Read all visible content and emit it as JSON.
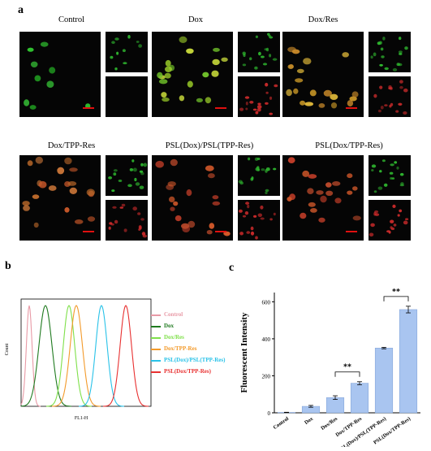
{
  "panel_a": {
    "letter": "a",
    "conditions": [
      {
        "title": "Control",
        "main_tint": "green"
      },
      {
        "title": "Dox",
        "main_tint": "green-yellow"
      },
      {
        "title": "Dox/Res",
        "main_tint": "orange"
      },
      {
        "title": "Dox/TPP-Res",
        "main_tint": "orange-red"
      },
      {
        "title": "PSL(Dox)/PSL(TPP-Res)",
        "main_tint": "red-orange"
      },
      {
        "title": "PSL(Dox/TPP-Res)",
        "main_tint": "red-orange"
      }
    ],
    "scale_bar_color": "#e01010"
  },
  "panel_b": {
    "letter": "b",
    "y_label": "Count",
    "x_label": "FL1-H",
    "legend": [
      {
        "label": "Control",
        "color": "#e89aa6"
      },
      {
        "label": "Dox",
        "color": "#1f7a1f"
      },
      {
        "label": "Dox/Res",
        "color": "#7fe04a"
      },
      {
        "label": "Dox/TPP-Res",
        "color": "#f39a2a"
      },
      {
        "label": "PSL(Dox)/PSL(TPP-Res)",
        "color": "#29c2e8"
      },
      {
        "label": "PSL(Dox/TPP-Res)",
        "color": "#e83030"
      }
    ]
  },
  "panel_c": {
    "letter": "c",
    "significance": [
      "**",
      "**"
    ]
  },
  "chart_data": {
    "type": "bar",
    "ylabel": "Fluorescent Intensity",
    "xlabel": "",
    "categories": [
      "Control",
      "Dox",
      "Dox/Res",
      "Dox/TPP-Res",
      "PSL(Dox)/PSL(TPP-Res)",
      "PSL(Dox/TPP-Res)"
    ],
    "values": [
      2,
      35,
      82,
      160,
      350,
      558
    ],
    "errors": [
      1,
      5,
      10,
      8,
      4,
      18
    ],
    "ylim": [
      0,
      650
    ],
    "yticks": [
      "0",
      "200",
      "400",
      "600"
    ],
    "bar_color": "#a9c5f0",
    "grid": false
  }
}
